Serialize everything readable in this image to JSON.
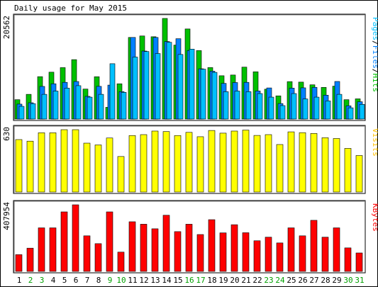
{
  "chart_data": {
    "type": "bar",
    "title": "Daily usage for May 2015",
    "categories": [
      "1",
      "2",
      "3",
      "4",
      "5",
      "6",
      "7",
      "8",
      "9",
      "10",
      "11",
      "12",
      "13",
      "14",
      "15",
      "16",
      "17",
      "18",
      "19",
      "20",
      "21",
      "22",
      "23",
      "24",
      "25",
      "26",
      "27",
      "28",
      "29",
      "30",
      "31"
    ],
    "weekend_days": [
      "2",
      "3",
      "9",
      "10",
      "16",
      "17",
      "23",
      "24",
      "30",
      "31"
    ],
    "panels": [
      {
        "id": "hits-files-pages",
        "axis_max_label": "20562",
        "ymax": 20562,
        "ylabel_parts": [
          {
            "text": "Pages",
            "color": "#00C0FF"
          },
          {
            "text": "/",
            "color": "#000000"
          },
          {
            "text": "Files",
            "color": "#0080FF"
          },
          {
            "text": "/",
            "color": "#000000"
          },
          {
            "text": "Hits",
            "color": "#00C000"
          }
        ],
        "series": [
          {
            "name": "Hits",
            "color": "#00C000",
            "values": [
              3960,
              5050,
              8660,
              9580,
              10510,
              12140,
              6130,
              8650,
              2400,
              7210,
              16680,
              16980,
              16820,
              20562,
              15110,
              18410,
              13990,
              10520,
              8850,
              9000,
              10610,
              9660,
              6100,
              4740,
              7650,
              7550,
              7000,
              6470,
              6720,
              3960,
              4130
            ]
          },
          {
            "name": "Files",
            "color": "#0080FF",
            "values": [
              3050,
              3330,
              6670,
              7210,
              7500,
              7670,
              4640,
              6680,
              6940,
              5600,
              16680,
              13900,
              16680,
              15840,
              16420,
              14010,
              10270,
              9780,
              7290,
              7460,
              7500,
              5740,
              6360,
              3170,
              6320,
              6380,
              6480,
              4880,
              7680,
              2700,
              3540
            ]
          },
          {
            "name": "Pages",
            "color": "#00C0FF",
            "values": [
              2600,
              3150,
              5050,
              5720,
              6320,
              6820,
              4480,
              5050,
              11310,
              5460,
              12670,
              13800,
              13390,
              15680,
              13200,
              14290,
              10190,
              9540,
              5600,
              5720,
              5600,
              5210,
              4480,
              2750,
              5210,
              4110,
              4480,
              3710,
              5050,
              2300,
              3000
            ]
          }
        ]
      },
      {
        "id": "visits",
        "axis_max_label": "630",
        "ymax": 630,
        "ylabel_parts": [
          {
            "text": "Visits",
            "color": "#FFC000"
          }
        ],
        "series": [
          {
            "name": "Visits",
            "color": "#FFFF00",
            "values": [
              530,
              514,
              599,
              599,
              630,
              630,
              494,
              476,
              546,
              359,
              571,
              580,
              616,
              611,
              571,
              603,
              559,
              622,
              595,
              616,
              626,
              572,
              580,
              480,
              608,
              600,
              592,
              549,
              541,
              441,
              369
            ]
          }
        ]
      },
      {
        "id": "kbytes",
        "axis_max_label": "407954",
        "ymax": 407954,
        "ylabel_parts": [
          {
            "text": "KBytes",
            "color": "#FF0000"
          }
        ],
        "series": [
          {
            "name": "KBytes",
            "color": "#FF0000",
            "values": [
              102670,
              142400,
              266800,
              266800,
              364600,
              407954,
              217900,
              170000,
              364600,
              118200,
              304000,
              289100,
              261000,
              344000,
              243600,
              289100,
              225800,
              316800,
              236100,
              286000,
              237000,
              187700,
              209700,
              174400,
              266800,
              217900,
              312900,
              209700,
              266800,
              144000,
              113000
            ]
          }
        ]
      }
    ]
  }
}
